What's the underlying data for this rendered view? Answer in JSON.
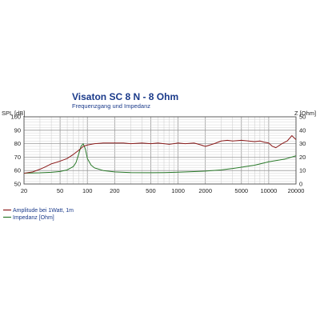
{
  "chart_data": {
    "type": "line",
    "title": "Visaton SC 8 N - 8 Ohm",
    "subtitle": "Frequenzgang und Impedanz",
    "ylabel_left": "SPL [dB]",
    "ylabel_right": "Z [Ohm]",
    "x_scale": "log",
    "xlim": [
      20,
      20000
    ],
    "ylim_left": [
      50,
      100
    ],
    "ylim_right": [
      0,
      50
    ],
    "x_ticks": [
      20,
      50,
      100,
      200,
      500,
      1000,
      2000,
      5000,
      10000,
      20000
    ],
    "x_tick_labels": [
      "20",
      "50",
      "100",
      "200",
      "500",
      "1000",
      "2000",
      "5000",
      "10000",
      "20000"
    ],
    "y_left_ticks": [
      50,
      60,
      70,
      80,
      90,
      100
    ],
    "y_right_ticks": [
      0,
      10,
      20,
      30,
      40,
      50
    ],
    "grid": true,
    "legend_position": "bottom-left",
    "series": [
      {
        "name": "Amplitude bei 1Watt, 1m",
        "axis": "left",
        "color": "#8b1a1a",
        "x": [
          20,
          25,
          30,
          35,
          40,
          45,
          50,
          60,
          70,
          80,
          90,
          100,
          120,
          150,
          200,
          250,
          300,
          400,
          500,
          600,
          700,
          800,
          1000,
          1200,
          1500,
          1800,
          2000,
          2500,
          3000,
          3500,
          4000,
          5000,
          6000,
          7000,
          8000,
          9000,
          10000,
          11000,
          12000,
          14000,
          16000,
          18000,
          20000
        ],
        "values": [
          58,
          59,
          61,
          63,
          65,
          66,
          67,
          69,
          72,
          75,
          78,
          79,
          80,
          80.5,
          80.5,
          80.5,
          80,
          80.5,
          80,
          80.5,
          80,
          79.5,
          80.5,
          80,
          80.5,
          79,
          78,
          80,
          82,
          82.5,
          82,
          82.5,
          82,
          81.5,
          82,
          81,
          80.5,
          78,
          77,
          80,
          82,
          86,
          83
        ]
      },
      {
        "name": "Impedanz [Ohm]",
        "axis": "right",
        "color": "#2a7a2a",
        "x": [
          20,
          30,
          40,
          50,
          60,
          70,
          75,
          80,
          85,
          90,
          95,
          100,
          110,
          120,
          150,
          200,
          300,
          500,
          700,
          1000,
          1500,
          2000,
          3000,
          4000,
          5000,
          7000,
          10000,
          15000,
          20000
        ],
        "values": [
          8,
          8.3,
          8.7,
          9.3,
          10.5,
          13,
          16,
          22,
          28,
          30,
          26,
          19,
          14,
          12,
          10,
          9,
          8.5,
          8.4,
          8.5,
          8.8,
          9.2,
          9.6,
          10.5,
          11.5,
          12.5,
          14,
          16.5,
          18.5,
          21
        ]
      }
    ]
  }
}
